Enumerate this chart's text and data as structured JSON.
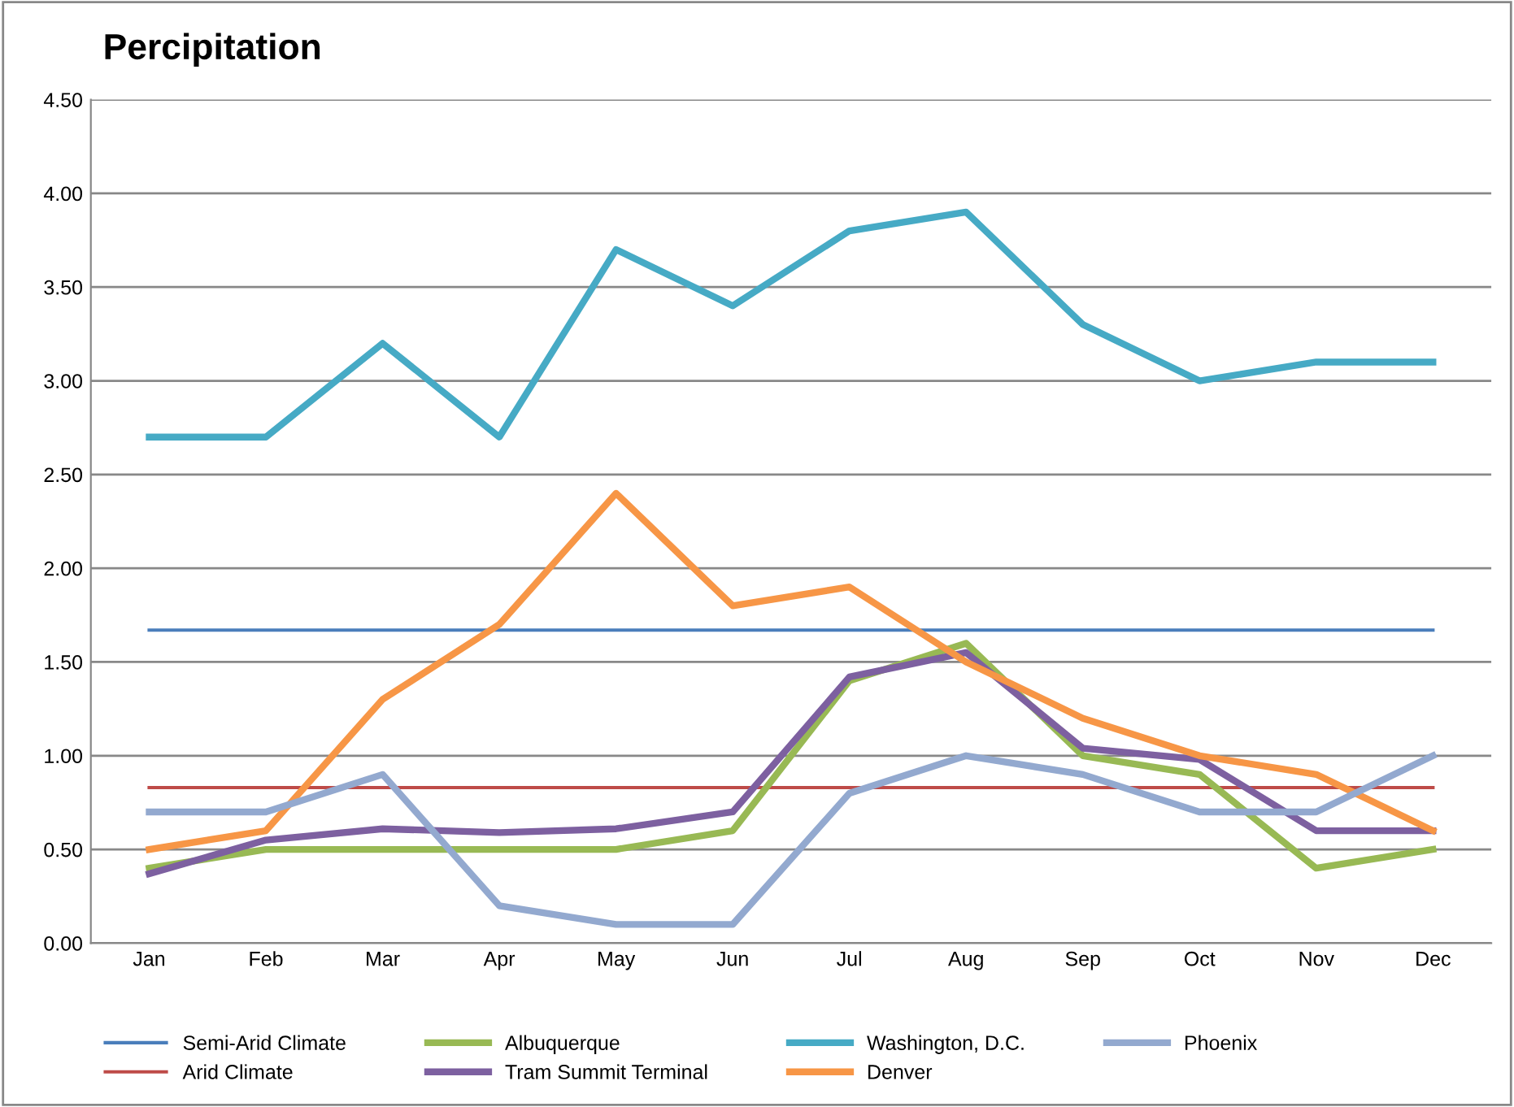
{
  "chart_data": {
    "type": "line",
    "title": "Percipitation",
    "categories": [
      "Jan",
      "Feb",
      "Mar",
      "Apr",
      "May",
      "Jun",
      "Jul",
      "Aug",
      "Sep",
      "Oct",
      "Nov",
      "Dec"
    ],
    "series": [
      {
        "name": "Semi-Arid Climate",
        "color": "#4a7ebb",
        "values": [
          1.67,
          1.67,
          1.67,
          1.67,
          1.67,
          1.67,
          1.67,
          1.67,
          1.67,
          1.67,
          1.67,
          1.67
        ]
      },
      {
        "name": "Arid Climate",
        "color": "#be4b48",
        "values": [
          0.83,
          0.83,
          0.83,
          0.83,
          0.83,
          0.83,
          0.83,
          0.83,
          0.83,
          0.83,
          0.83,
          0.83
        ]
      },
      {
        "name": "Albuquerque",
        "color": "#98b954",
        "values": [
          0.4,
          0.5,
          0.5,
          0.5,
          0.5,
          0.6,
          1.4,
          1.6,
          1.0,
          0.9,
          0.4,
          0.5
        ]
      },
      {
        "name": "Tram Summit Terminal",
        "color": "#7d60a0",
        "values": [
          0.37,
          0.55,
          0.61,
          0.59,
          0.61,
          0.7,
          1.42,
          1.55,
          1.04,
          0.98,
          0.6,
          0.6
        ]
      },
      {
        "name": "Washington, D.C.",
        "color": "#46aac5",
        "values": [
          2.7,
          2.7,
          3.2,
          2.7,
          3.7,
          3.4,
          3.8,
          3.9,
          3.3,
          3.0,
          3.1,
          3.1
        ]
      },
      {
        "name": "Denver",
        "color": "#f79646",
        "values": [
          0.5,
          0.6,
          1.3,
          1.7,
          2.4,
          1.8,
          1.9,
          1.5,
          1.2,
          1.0,
          0.9,
          0.6
        ]
      },
      {
        "name": "Phoenix",
        "color": "#93a9cf",
        "values": [
          0.7,
          0.7,
          0.9,
          0.2,
          0.1,
          0.1,
          0.8,
          1.0,
          0.9,
          0.7,
          0.7,
          1.0
        ]
      }
    ],
    "ylim": [
      0,
      4.5
    ],
    "yticks": [
      {
        "value": 0,
        "label": "0.00"
      },
      {
        "value": 0.5,
        "label": "0.50"
      },
      {
        "value": 1,
        "label": "1.00"
      },
      {
        "value": 1.5,
        "label": "1.50"
      },
      {
        "value": 2,
        "label": "2.00"
      },
      {
        "value": 2.5,
        "label": "2.50"
      },
      {
        "value": 3,
        "label": "3.00"
      },
      {
        "value": 3.5,
        "label": "3.50"
      },
      {
        "value": 4,
        "label": "4.00"
      },
      {
        "value": 4.5,
        "label": "4.50"
      }
    ],
    "grid": "y",
    "legend": "bottom",
    "marker": "none",
    "line_style": "solid"
  }
}
